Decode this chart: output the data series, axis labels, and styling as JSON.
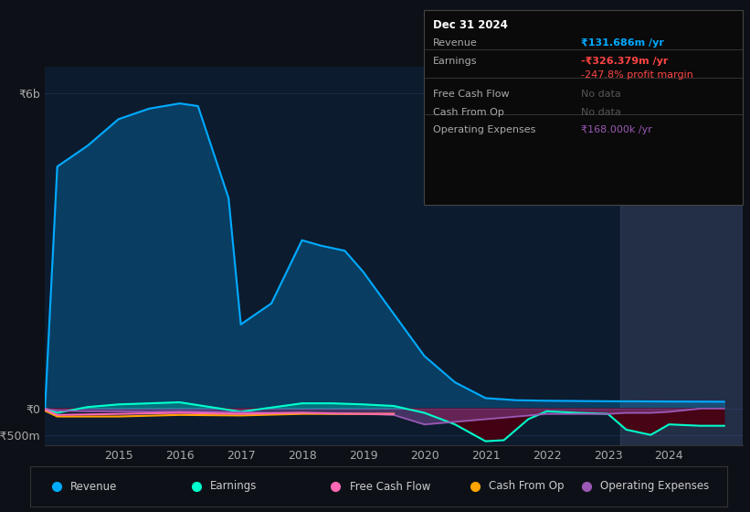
{
  "background_color": "#0d1117",
  "chart_bg_color": "#0d1b2e",
  "grid_color": "#1e3050",
  "revenue_color": "#00aaff",
  "earnings_color": "#00ffcc",
  "free_cash_flow_color": "#ff69b4",
  "cash_from_op_color": "#ffa500",
  "operating_expenses_color": "#9b59b6",
  "ylim": [
    -700,
    6500
  ],
  "info_box": {
    "title": "Dec 31 2024",
    "rows": [
      {
        "label": "Revenue",
        "value": "₹131.686m /yr",
        "value_color": "#00aaff",
        "separator": true
      },
      {
        "label": "Earnings",
        "value": "-₹326.379m /yr",
        "value_color": "#ff4444",
        "separator": false
      },
      {
        "label": "",
        "value": "-247.8% profit margin",
        "value_color": "#ff4444",
        "separator": true
      },
      {
        "label": "Free Cash Flow",
        "value": "No data",
        "value_color": "#555555",
        "separator": true
      },
      {
        "label": "Cash From Op",
        "value": "No data",
        "value_color": "#555555",
        "separator": true
      },
      {
        "label": "Operating Expenses",
        "value": "₹168.000k /yr",
        "value_color": "#9b59b6",
        "separator": false
      }
    ]
  },
  "legend_items": [
    {
      "label": "Revenue",
      "color": "#00aaff"
    },
    {
      "label": "Earnings",
      "color": "#00ffcc"
    },
    {
      "label": "Free Cash Flow",
      "color": "#ff69b4"
    },
    {
      "label": "Cash From Op",
      "color": "#ffa500"
    },
    {
      "label": "Operating Expenses",
      "color": "#9b59b6"
    }
  ]
}
